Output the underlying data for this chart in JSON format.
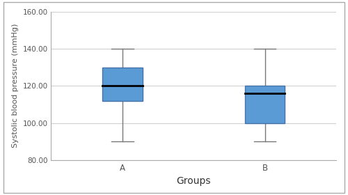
{
  "groups": [
    "A",
    "B"
  ],
  "box_A": {
    "whisker_low": 90,
    "q1": 112,
    "median": 120,
    "q3": 130,
    "whisker_high": 140
  },
  "box_B": {
    "whisker_low": 90,
    "q1": 100,
    "median": 116,
    "q3": 120,
    "whisker_high": 140
  },
  "box_color": "#5B9BD5",
  "median_color": "#000000",
  "whisker_color": "#777777",
  "cap_color": "#777777",
  "ylabel": "Systolic blood pressure (mmHg)",
  "xlabel": "Groups",
  "ylim": [
    80,
    160
  ],
  "yticks": [
    80,
    100,
    120,
    140,
    160
  ],
  "ytick_labels": [
    "80.00",
    "100.00",
    "120.00",
    "140.00",
    "160.00"
  ],
  "background_color": "#ffffff",
  "grid_color": "#d0d0d0",
  "box_width": 0.28,
  "linewidth": 1.0,
  "median_linewidth": 2.0,
  "outer_border_color": "#aaaaaa",
  "tick_label_fontsize": 7.5,
  "xlabel_fontsize": 10,
  "ylabel_fontsize": 8
}
